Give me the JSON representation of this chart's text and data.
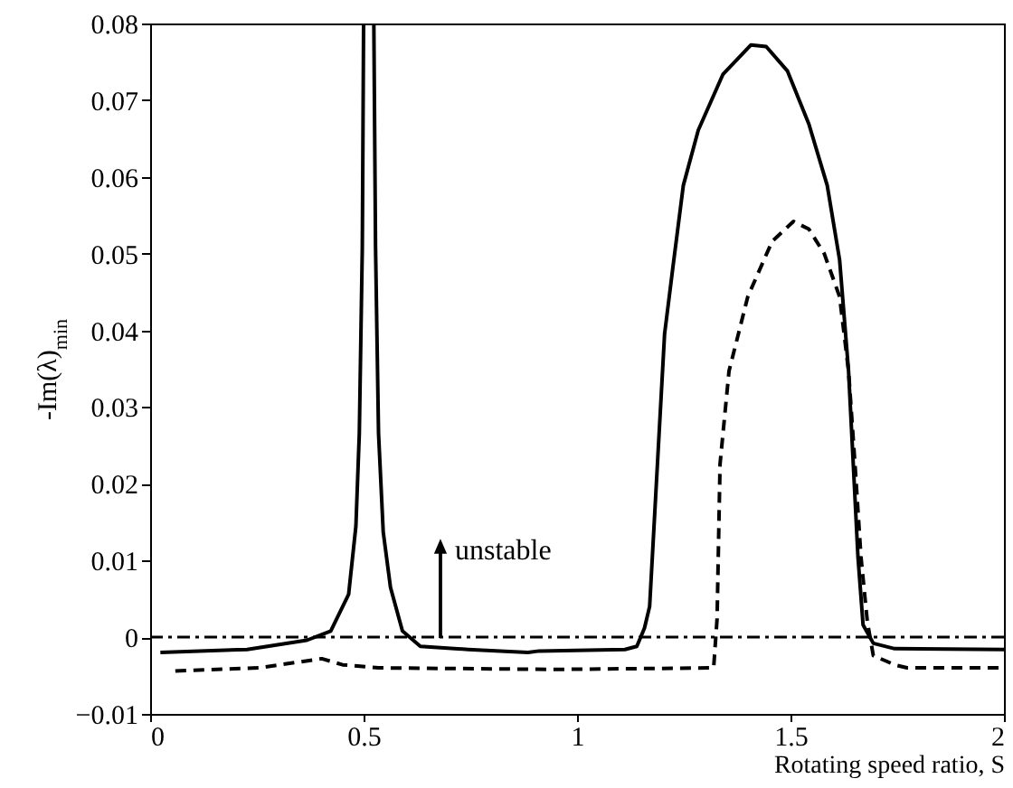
{
  "chart_data": {
    "type": "line",
    "xlabel": "Rotating speed  ratio, S",
    "ylabel": "-Im(λ)$_{min}$",
    "xlim": [
      0,
      2
    ],
    "xticks": [
      0,
      0.5,
      1,
      1.5,
      2
    ],
    "ylim": [
      -0.01,
      0.08
    ],
    "yticks": [
      -0.01,
      0,
      0.01,
      0.02,
      0.03,
      0.04,
      0.05,
      0.06,
      0.07,
      0.08
    ],
    "series": [
      {
        "color": "#000000",
        "line_style": "solid",
        "x": [
          0.024,
          0.227,
          0.367,
          0.423,
          0.465,
          0.482,
          0.49,
          0.497,
          0.5,
          0.512,
          0.524,
          0.528,
          0.535,
          0.546,
          0.563,
          0.591,
          0.633,
          0.745,
          0.885,
          0.911,
          1.112,
          1.14,
          1.158,
          1.17,
          1.205,
          1.224,
          1.249,
          1.284,
          1.342,
          1.407,
          1.443,
          1.493,
          1.543,
          1.586,
          1.615,
          1.636,
          1.658,
          1.67,
          1.694,
          1.744,
          2.0
        ],
        "values": [
          -0.002,
          -0.0016,
          -0.0004,
          0.0008,
          0.0056,
          0.0145,
          0.0266,
          0.0508,
          0.08,
          null,
          0.08,
          0.0508,
          0.0266,
          0.0137,
          0.0065,
          0.0008,
          -0.0012,
          -0.0016,
          -0.002,
          -0.0018,
          -0.0016,
          -0.0012,
          0.0012,
          0.004,
          0.0395,
          0.048,
          0.0589,
          0.0661,
          0.0734,
          0.0772,
          0.077,
          0.0738,
          0.0669,
          0.0589,
          0.0492,
          0.0347,
          0.0105,
          0.0016,
          -0.0008,
          -0.0015,
          -0.0016
        ]
      },
      {
        "color": "#000000",
        "line_style": "dashed",
        "x": [
          0.059,
          0.255,
          0.353,
          0.402,
          0.451,
          0.535,
          0.955,
          1.32,
          1.328,
          1.335,
          1.356,
          1.4,
          1.457,
          1.507,
          1.543,
          1.579,
          1.615,
          1.636,
          1.651,
          1.665,
          1.68,
          1.694,
          1.744,
          1.773,
          2.0
        ],
        "values": [
          -0.0044,
          -0.004,
          -0.0032,
          -0.0028,
          -0.0036,
          -0.004,
          -0.0042,
          -0.004,
          0.0024,
          0.0226,
          0.0347,
          0.0444,
          0.0516,
          0.0542,
          0.0532,
          0.05,
          0.0444,
          0.0347,
          0.0226,
          0.0105,
          0.002,
          -0.0024,
          -0.0036,
          -0.004,
          -0.004
        ]
      }
    ],
    "ref_lines": [
      {
        "axis": "y",
        "value": 0,
        "color": "#000000",
        "line_style": "dashdot"
      }
    ],
    "annotations": [
      {
        "text": "unstable",
        "x": 0.68,
        "y": 0
      }
    ]
  }
}
